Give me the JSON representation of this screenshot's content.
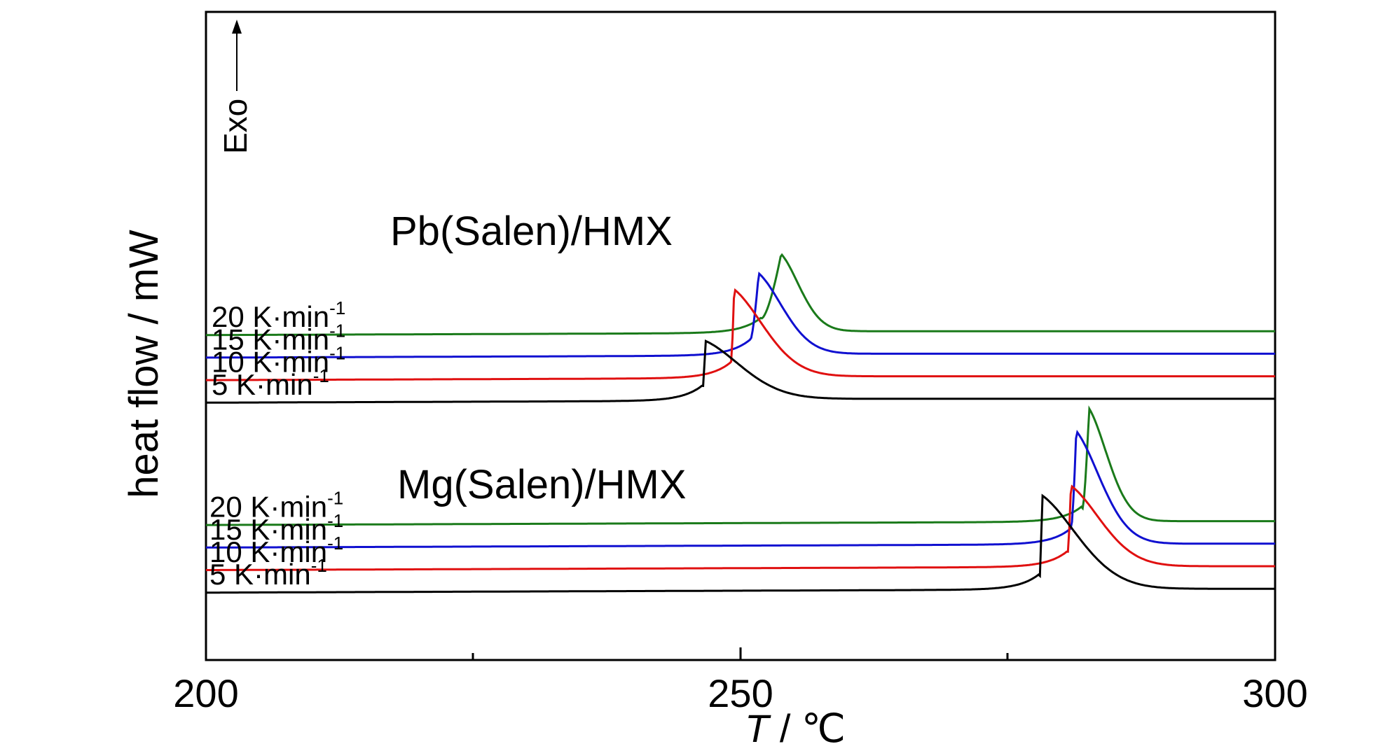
{
  "chart_data": {
    "type": "line",
    "title": "",
    "xlabel_italic": "T",
    "xlabel_rest": " / ℃",
    "ylabel": "heat flow / mW",
    "xlim": [
      200,
      300
    ],
    "x_ticks": [
      "200",
      "250",
      "300"
    ],
    "annotation": "Exo",
    "groups": [
      {
        "name": "Pb(Salen)/HMX",
        "series": [
          {
            "label": "20 K·min",
            "exp": "-1",
            "color": "#1a7a1a",
            "peak_x": 253.8,
            "onset_x": 252.0,
            "peak_height": 9.7,
            "baseline": 7.3
          },
          {
            "label": "15 K·min",
            "exp": "-1",
            "color": "#1010d0",
            "peak_x": 251.7,
            "onset_x": 250.9,
            "peak_height": 9.1,
            "baseline": 6.6
          },
          {
            "label": "10 K·min",
            "exp": "-1",
            "color": "#e01010",
            "peak_x": 249.4,
            "onset_x": 249.1,
            "peak_height": 8.6,
            "baseline": 5.9
          },
          {
            "label": "5 K·min",
            "exp": "-1",
            "color": "#000000",
            "peak_x": 246.7,
            "onset_x": 246.5,
            "peak_height": 7.0,
            "baseline": 5.2
          }
        ]
      },
      {
        "name": "Mg(Salen)/HMX",
        "series": [
          {
            "label": "20 K·min",
            "exp": "-1",
            "color": "#1a7a1a",
            "peak_x": 282.6,
            "onset_x": 282.0,
            "peak_height": 4.9,
            "baseline": 1.4
          },
          {
            "label": "15 K·min",
            "exp": "-1",
            "color": "#1010d0",
            "peak_x": 281.4,
            "onset_x": 280.9,
            "peak_height": 4.2,
            "baseline": 0.7
          },
          {
            "label": "10 K·min",
            "exp": "-1",
            "color": "#e01010",
            "peak_x": 280.9,
            "onset_x": 280.6,
            "peak_height": 2.5,
            "baseline": 0.0
          },
          {
            "label": "5 K·min",
            "exp": "-1",
            "color": "#000000",
            "peak_x": 278.2,
            "onset_x": 278.0,
            "peak_height": 2.2,
            "baseline": -0.7
          }
        ]
      }
    ]
  }
}
